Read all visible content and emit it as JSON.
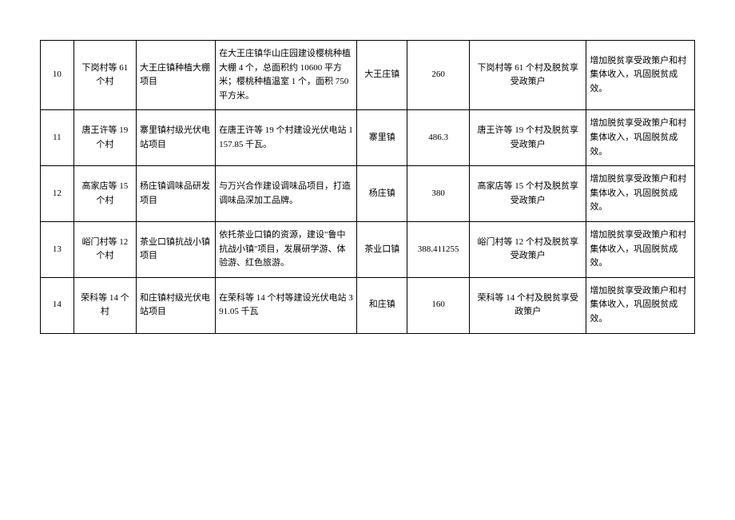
{
  "table": {
    "columns": [
      {
        "key": "index",
        "class": "col-index"
      },
      {
        "key": "village",
        "class": "col-village"
      },
      {
        "key": "project",
        "class": "col-project"
      },
      {
        "key": "desc",
        "class": "col-desc"
      },
      {
        "key": "town",
        "class": "col-town"
      },
      {
        "key": "amount",
        "class": "col-amount"
      },
      {
        "key": "beneficiary",
        "class": "col-beneficiary"
      },
      {
        "key": "effect",
        "class": "col-effect"
      }
    ],
    "rows": [
      {
        "index": "10",
        "village": "下岗村等 61 个村",
        "project": "大王庄镇种植大棚项目",
        "desc": "在大王庄镇华山庄园建设樱桃种植大棚 4 个，总面积约 10600 平方米；樱桃种植温室 1 个，面积 750 平方米。",
        "town": "大王庄镇",
        "amount": "260",
        "beneficiary": "下岗村等 61 个村及脱贫享受政策户",
        "effect": "增加脱贫享受政策户和村集体收入，巩固脱贫成效。"
      },
      {
        "index": "11",
        "village": "唐王许等 19 个村",
        "project": "寨里镇村级光伏电站项目",
        "desc": "在唐王许等 19 个村建设光伏电站 1157.85 千瓦。",
        "town": "寨里镇",
        "amount": "486.3",
        "beneficiary": "唐王许等 19 个村及脱贫享受政策户",
        "effect": "增加脱贫享受政策户和村集体收入，巩固脱贫成效。"
      },
      {
        "index": "12",
        "village": "高家店等 15 个村",
        "project": "杨庄镇调味品研发项目",
        "desc": "与万兴合作建设调味品项目，打造调味品深加工品牌。",
        "town": "杨庄镇",
        "amount": "380",
        "beneficiary": "高家店等 15 个村及脱贫享受政策户",
        "effect": "增加脱贫享受政策户和村集体收入，巩固脱贫成效。"
      },
      {
        "index": "13",
        "village": "峪门村等 12 个村",
        "project": "茶业口镇抗战小镇项目",
        "desc": "依托茶业口镇的资源，建设\"鲁中抗战小镇\"项目，发展研学游、体验游、红色旅游。",
        "town": "茶业口镇",
        "amount": "388.411255",
        "beneficiary": "峪门村等 12 个村及脱贫享受政策户",
        "effect": "增加脱贫享受政策户和村集体收入，巩固脱贫成效。"
      },
      {
        "index": "14",
        "village": "荣科等 14 个村",
        "project": "和庄镇村级光伏电站项目",
        "desc": "在荣科等 14 个村等建设光伏电站 391.05 千瓦",
        "town": "和庄镇",
        "amount": "160",
        "beneficiary": "荣科等 14 个村及脱贫享受政策户",
        "effect": "增加脱贫享受政策户和村集体收入，巩固脱贫成效。"
      }
    ],
    "border_color": "#000000",
    "background_color": "#ffffff",
    "font_size": 11,
    "font_family": "SimSun"
  }
}
